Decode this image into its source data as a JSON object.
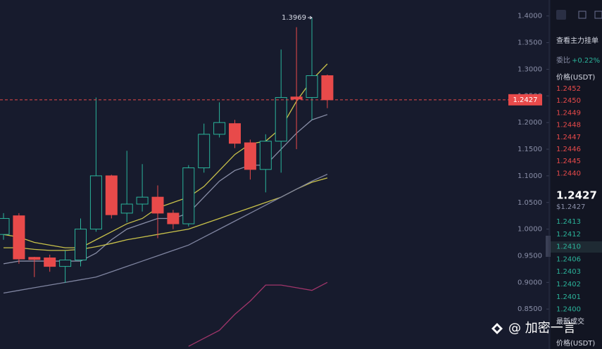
{
  "chart_data": {
    "type": "candlestick",
    "open": [
      0.99,
      1.025,
      0.947,
      0.946,
      0.93,
      0.942,
      1.0,
      1.1,
      1.03,
      1.047,
      1.06,
      1.03,
      1.01,
      1.115,
      1.178,
      1.198,
      1.162,
      1.112,
      1.165,
      1.248,
      1.247,
      1.288
    ],
    "high": [
      1.03,
      1.03,
      0.948,
      0.952,
      0.96,
      1.02,
      1.247,
      1.102,
      1.147,
      1.122,
      1.082,
      1.036,
      1.12,
      1.198,
      1.238,
      1.205,
      1.168,
      1.178,
      1.337,
      1.379,
      1.3969,
      1.29
    ],
    "low": [
      0.98,
      0.935,
      0.91,
      0.92,
      0.899,
      0.93,
      0.995,
      1.02,
      1.013,
      1.033,
      0.983,
      1.0,
      1.005,
      1.106,
      1.172,
      1.152,
      1.093,
      1.069,
      1.106,
      1.15,
      1.205,
      1.227
    ],
    "close": [
      1.02,
      0.944,
      0.943,
      0.93,
      0.942,
      1.0,
      1.1,
      1.027,
      1.047,
      1.06,
      1.03,
      1.01,
      1.115,
      1.178,
      1.2,
      1.161,
      1.112,
      1.165,
      1.247,
      1.244,
      1.288,
      1.2427
    ],
    "up_color": "#2bb39a",
    "down_color": "#e84a4a",
    "series": [
      {
        "color": "#c9c24a",
        "values": [
          0.99,
          0.985,
          0.975,
          0.97,
          0.965,
          0.965,
          0.98,
          0.995,
          1.01,
          1.02,
          1.04,
          1.05,
          1.06,
          1.08,
          1.11,
          1.14,
          1.16,
          1.165,
          1.19,
          1.24,
          1.28,
          1.31
        ]
      },
      {
        "color": "#8a8fa8",
        "values": [
          0.935,
          0.94,
          0.94,
          0.94,
          0.94,
          0.94,
          0.955,
          0.98,
          1.0,
          1.01,
          1.02,
          1.02,
          1.03,
          1.06,
          1.09,
          1.11,
          1.12,
          1.12,
          1.15,
          1.18,
          1.205,
          1.215
        ]
      },
      {
        "color": "#c9c24a",
        "values": [
          0.965,
          0.965,
          0.962,
          0.96,
          0.96,
          0.962,
          0.967,
          0.973,
          0.98,
          0.985,
          0.99,
          0.995,
          1.0,
          1.01,
          1.02,
          1.03,
          1.04,
          1.05,
          1.06,
          1.075,
          1.088,
          1.096
        ]
      },
      {
        "color": "#7f84a0",
        "values": [
          0.88,
          0.885,
          0.89,
          0.895,
          0.9,
          0.905,
          0.91,
          0.92,
          0.93,
          0.94,
          0.95,
          0.96,
          0.97,
          0.985,
          1.0,
          1.015,
          1.03,
          1.045,
          1.06,
          1.075,
          1.09,
          1.103
        ]
      },
      {
        "color": "#a0356a",
        "values": [
          null,
          null,
          null,
          null,
          null,
          null,
          null,
          null,
          null,
          null,
          null,
          null,
          0.78,
          0.795,
          0.81,
          0.84,
          0.865,
          0.895,
          0.895,
          0.89,
          0.885,
          0.9
        ]
      }
    ],
    "ylim": [
      0.775,
      1.43
    ],
    "yticks": [
      {
        "value": 1.4,
        "label": "1.4000"
      },
      {
        "value": 1.35,
        "label": "1.3500"
      },
      {
        "value": 1.3,
        "label": "1.3000"
      },
      {
        "value": 1.25,
        "label": "1.2500"
      },
      {
        "value": 1.2,
        "label": "1.2000"
      },
      {
        "value": 1.15,
        "label": "1.1500"
      },
      {
        "value": 1.1,
        "label": "1.1000"
      },
      {
        "value": 1.05,
        "label": "1.0500"
      },
      {
        "value": 1.0,
        "label": "1.0000"
      },
      {
        "value": 0.95,
        "label": "0.9500"
      },
      {
        "value": 0.9,
        "label": "0.9000"
      },
      {
        "value": 0.85,
        "label": "0.8500"
      }
    ]
  },
  "order_book": {
    "link": "查看主力挂单",
    "ratio_label": "委比",
    "ratio": "+0.22%",
    "price_header": "价格(USDT)",
    "asks": [
      "1.2452",
      "1.2450",
      "1.2449",
      "1.2448",
      "1.2447",
      "1.2446",
      "1.2445",
      "1.2440"
    ],
    "mid_price": "1.2427",
    "mid_fiat": "$1.2427",
    "bids": [
      "1.2413",
      "1.2412",
      "1.2410",
      "1.2406",
      "1.2403",
      "1.2402",
      "1.2401",
      "1.2400"
    ],
    "trades_title": "最新成交",
    "trades_header": "价格(USDT)"
  },
  "watermark": "@ 加密一言"
}
